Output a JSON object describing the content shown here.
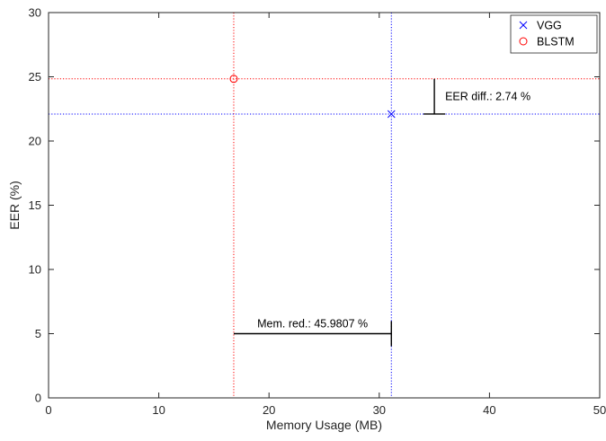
{
  "chart_data": {
    "type": "scatter",
    "xlabel": "Memory Usage (MB)",
    "ylabel": "EER (%)",
    "xlim": [
      0,
      50
    ],
    "ylim": [
      0,
      30
    ],
    "x_ticks": [
      0,
      10,
      20,
      30,
      40,
      50
    ],
    "y_ticks": [
      0,
      5,
      10,
      15,
      20,
      25,
      30
    ],
    "grid": false,
    "legend_position": "top-right",
    "series": [
      {
        "name": "VGG",
        "marker": "x",
        "color": "#0000ff",
        "x": [
          31.1
        ],
        "y": [
          22.1
        ]
      },
      {
        "name": "BLSTM",
        "marker": "o",
        "color": "#ff0000",
        "x": [
          16.8
        ],
        "y": [
          24.84
        ]
      }
    ],
    "reference_lines": [
      {
        "orientation": "vertical",
        "value": 16.8,
        "color": "#ff0000",
        "style": "dotted"
      },
      {
        "orientation": "vertical",
        "value": 31.1,
        "color": "#0000ff",
        "style": "dotted"
      },
      {
        "orientation": "horizontal",
        "value": 24.84,
        "color": "#ff0000",
        "style": "dotted"
      },
      {
        "orientation": "horizontal",
        "value": 22.1,
        "color": "#0000ff",
        "style": "dotted"
      }
    ],
    "annotations": [
      {
        "text": "EER diff.: 2.74 %",
        "bracket_x": 35,
        "y_from": 22.1,
        "y_to": 24.84
      },
      {
        "text": "Mem. red.: 45.9807 %",
        "bracket_y": 5,
        "x_from": 16.8,
        "x_to": 31.1
      }
    ]
  }
}
